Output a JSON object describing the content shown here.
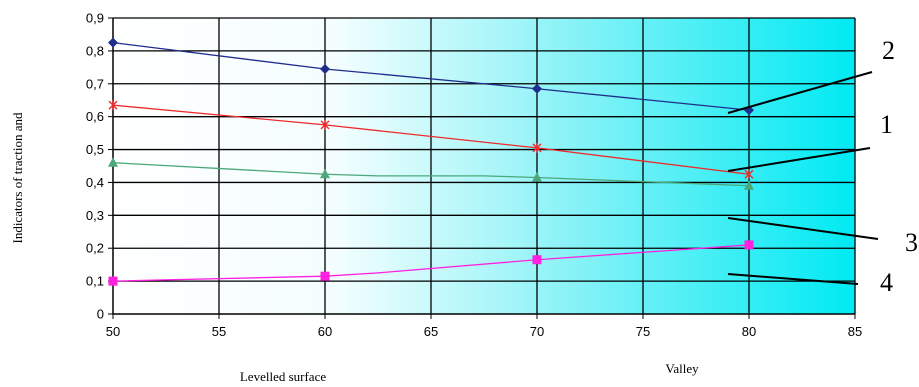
{
  "chart_data": {
    "type": "line",
    "ylabel": "Indicators of traction and",
    "xlabel_left": "Levelled surface",
    "xlabel_right": "Valley",
    "xlim": [
      50,
      85
    ],
    "ylim": [
      0,
      0.9
    ],
    "x_ticks": [
      50,
      55,
      60,
      65,
      70,
      75,
      80,
      85
    ],
    "y_ticks": [
      0,
      0.1,
      0.2,
      0.3,
      0.4,
      0.5,
      0.6,
      0.7,
      0.8,
      0.9
    ],
    "x_tick_labels": [
      "50",
      "55",
      "60",
      "65",
      "70",
      "75",
      "80",
      "85"
    ],
    "y_tick_labels": [
      "0",
      "0,1",
      "0,2",
      "0,3",
      "0,4",
      "0,5",
      "0,6",
      "0,7",
      "0,8",
      "0,9"
    ],
    "grid": true,
    "background_gradient": [
      "#ffffff",
      "#00eaf3"
    ],
    "series": [
      {
        "name": "2",
        "color": "#1f2d8c",
        "marker": "diamond",
        "x": [
          50,
          60,
          70,
          80
        ],
        "y": [
          0.825,
          0.745,
          0.685,
          0.62
        ]
      },
      {
        "name": "1",
        "color": "#ee2a2a",
        "marker": "star",
        "x": [
          50,
          60,
          70,
          80
        ],
        "y": [
          0.635,
          0.575,
          0.505,
          0.425
        ]
      },
      {
        "name": "3",
        "color": "#4aa87a",
        "marker": "triangle",
        "x": [
          50,
          60,
          62.5,
          67.5,
          70,
          80
        ],
        "y": [
          0.46,
          0.425,
          0.42,
          0.42,
          0.415,
          0.39
        ]
      },
      {
        "name": "4",
        "color": "#ff20e0",
        "marker": "square",
        "x": [
          50,
          60,
          62.5,
          70,
          80
        ],
        "y": [
          0.1,
          0.115,
          0.125,
          0.165,
          0.21
        ]
      }
    ],
    "callouts": [
      {
        "label": "2",
        "series": "2"
      },
      {
        "label": "1",
        "series": "1"
      },
      {
        "label": "3",
        "series": "3"
      },
      {
        "label": "4",
        "series": "4"
      }
    ]
  }
}
